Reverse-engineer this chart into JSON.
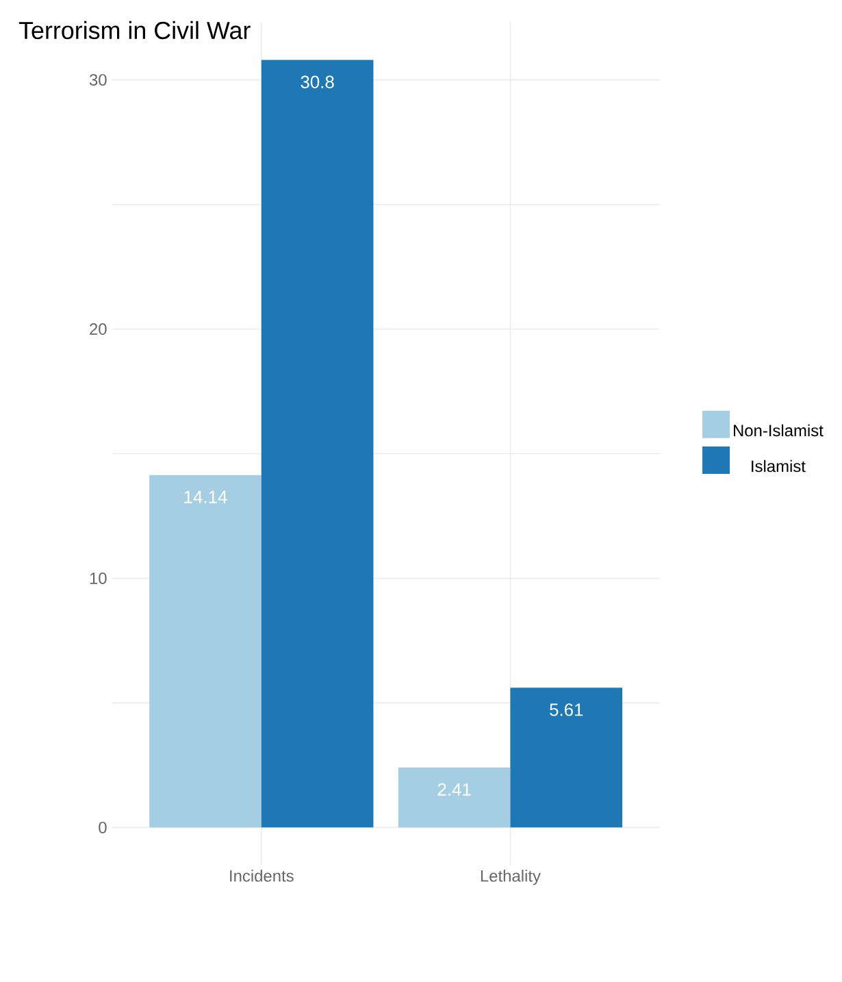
{
  "chart_data": {
    "type": "bar",
    "title": "Terrorism in Civil War",
    "categories": [
      "Incidents",
      "Lethality"
    ],
    "series": [
      {
        "name": "Non-Islamist",
        "color": "#a6cee3",
        "values": [
          14.14,
          2.41
        ]
      },
      {
        "name": "Islamist",
        "color": "#1f78b4",
        "values": [
          30.8,
          5.61
        ]
      }
    ],
    "ylim": [
      -1.5,
      32.3
    ],
    "yticks": [
      0,
      {
        "value": 5,
        "label": null
      },
      10,
      {
        "value": 15,
        "label": null
      },
      20,
      {
        "value": 25,
        "label": null
      },
      30
    ],
    "grid": true,
    "legend": "right",
    "data_labels": true
  }
}
